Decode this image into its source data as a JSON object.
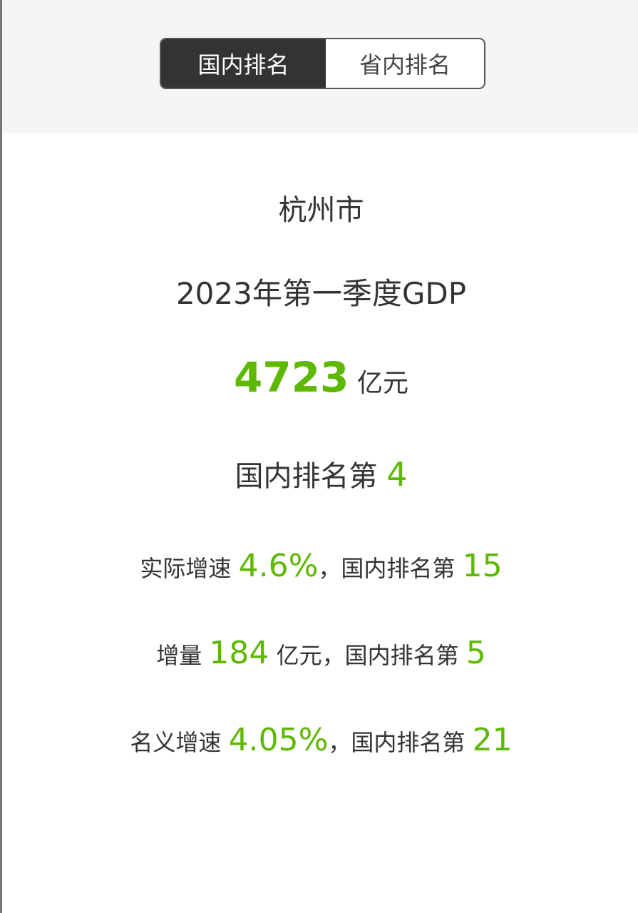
{
  "tabs": [
    {
      "label": "国内排名",
      "active": true
    },
    {
      "label": "省内排名",
      "active": false
    }
  ],
  "city": "杭州市",
  "period": "2023年第一季度GDP",
  "gdp": {
    "value": "4723",
    "unit": "亿元"
  },
  "rank": {
    "label": "国内排名第",
    "value": "4"
  },
  "real_growth": {
    "label": "实际增速",
    "value": "4.6%",
    "sep": "，国内排名第",
    "rank": "15"
  },
  "increment": {
    "label": "增量",
    "value": "184",
    "unit": "亿元",
    "sep": "，国内排名第",
    "rank": "5"
  },
  "nominal_growth": {
    "label": "名义增速",
    "value": "4.05%",
    "sep": "，国内排名第",
    "rank": "21"
  },
  "colors": {
    "accent": "#5cb800",
    "tab_active_bg": "#333333",
    "top_bg": "#f5f5f5"
  }
}
